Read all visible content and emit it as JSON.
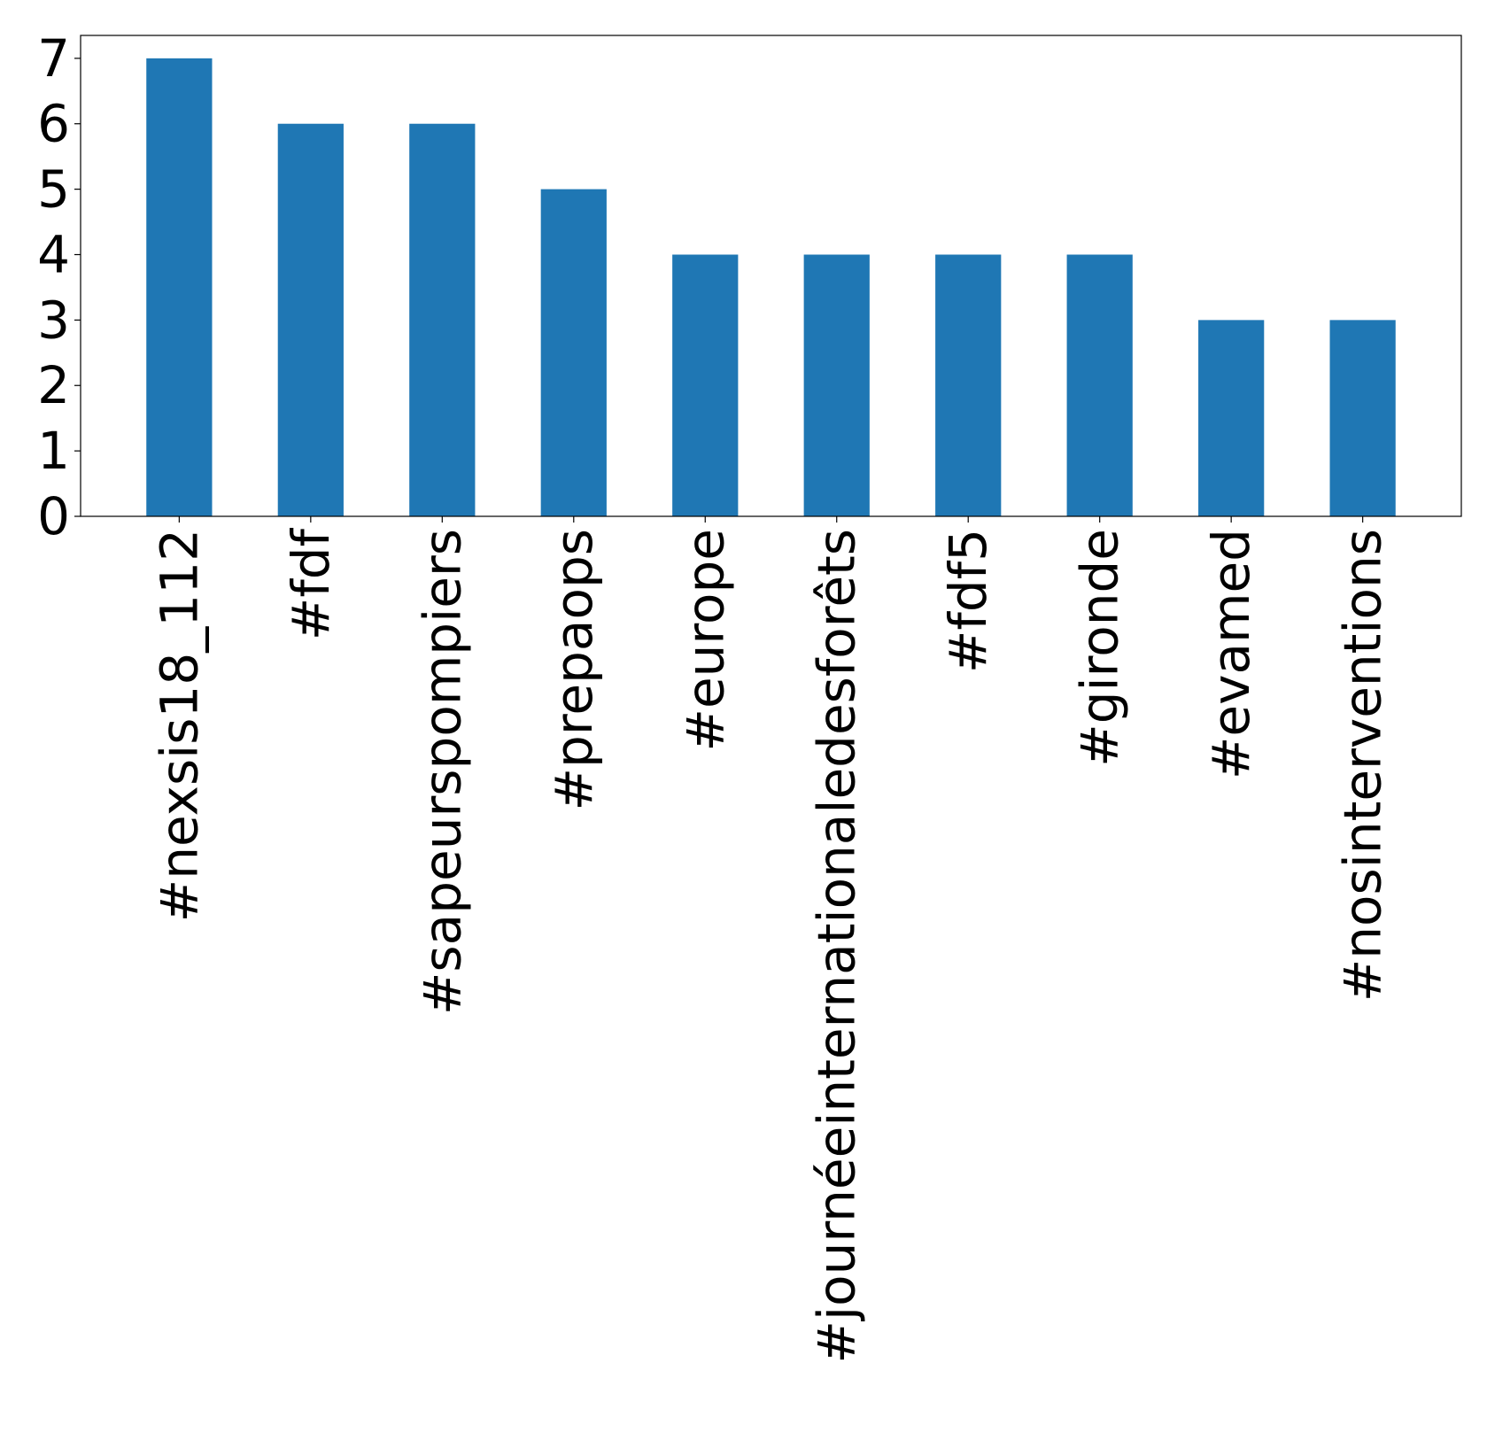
{
  "chart_data": {
    "type": "bar",
    "title": "",
    "xlabel": "",
    "ylabel": "",
    "categories": [
      "#nexsis18_112",
      "#fdf",
      "#sapeurspompiers",
      "#prepaops",
      "#europe",
      "#journéeinternationaledesforêts",
      "#fdf5",
      "#gironde",
      "#evamed",
      "#nosinterventions"
    ],
    "values": [
      7,
      6,
      6,
      5,
      4,
      4,
      4,
      4,
      3,
      3
    ],
    "ylim": [
      0,
      7.35
    ],
    "yticks": [
      0,
      1,
      2,
      3,
      4,
      5,
      6,
      7
    ],
    "bar_color": "#1f77b4",
    "grid": false,
    "legend": "none"
  }
}
